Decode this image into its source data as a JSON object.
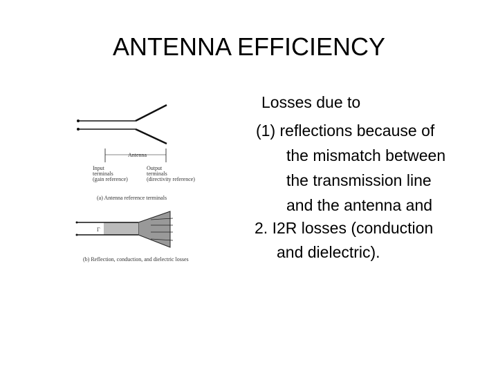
{
  "title": "ANTENNA EFFICIENCY",
  "body": {
    "lines": [
      "Losses due to",
      "(1) reflections because of",
      "the mismatch between",
      "the transmission line",
      "and the antenna and",
      "2. I2R losses (conduction",
      "and dielectric)."
    ]
  },
  "figure": {
    "antenna_label": "Antenna",
    "input_label": [
      "Input",
      "terminals",
      "(gain reference)"
    ],
    "output_label": [
      "Output",
      "terminals",
      "(directivity reference)"
    ],
    "caption_a": "(a) Antenna reference terminals",
    "gamma_label": "Γ",
    "caption_b": "(b) Reflection, conduction, and dielectric losses"
  }
}
